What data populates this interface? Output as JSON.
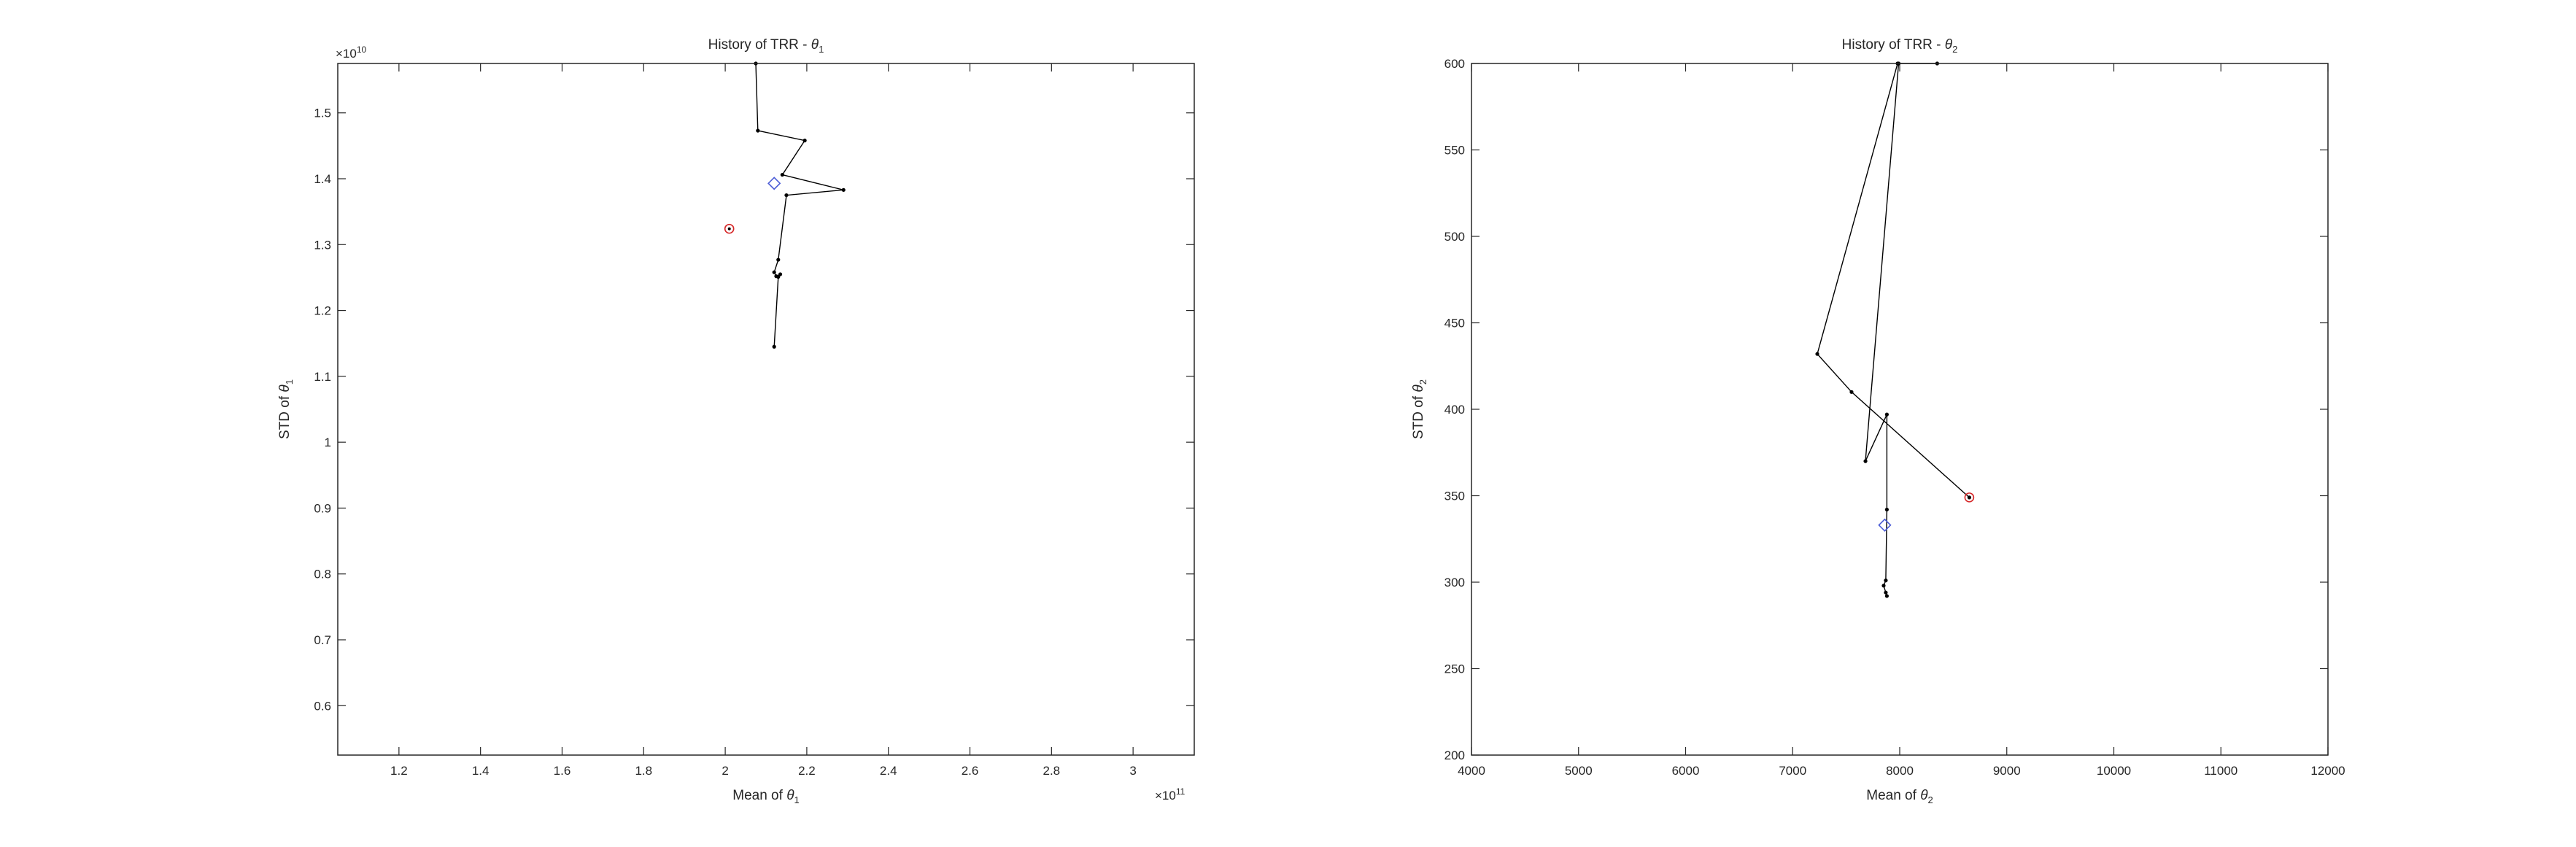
{
  "figure": {
    "background": "#ffffff"
  },
  "chart_data": [
    {
      "type": "line",
      "title": "History of TRR - ",
      "title_symbol": "θ",
      "title_sub": "1",
      "xlabel": "Mean of ",
      "xlabel_symbol": "θ",
      "xlabel_sub": "1",
      "ylabel": "STD of ",
      "ylabel_symbol": "θ",
      "ylabel_sub": "1",
      "x_exponent_label": "×10",
      "x_exponent": "11",
      "y_exponent_label": "×10",
      "y_exponent": "10",
      "xlim": [
        1.05,
        3.15
      ],
      "ylim": [
        0.525,
        1.575
      ],
      "x_ticks": [
        1.2,
        1.4,
        1.6,
        1.8,
        2.0,
        2.2,
        2.4,
        2.6,
        2.8,
        3.0
      ],
      "x_tick_labels": [
        "1.2",
        "1.4",
        "1.6",
        "1.8",
        "2",
        "2.2",
        "2.4",
        "2.6",
        "2.8",
        "3"
      ],
      "y_ticks": [
        0.6,
        0.7,
        0.8,
        0.9,
        1.0,
        1.1,
        1.2,
        1.3,
        1.4,
        1.5
      ],
      "y_tick_labels": [
        "0.6",
        "0.7",
        "0.8",
        "0.9",
        "1",
        "1.1",
        "1.2",
        "1.3",
        "1.4",
        "1.5"
      ],
      "grid": false,
      "colors": {
        "line": "#000000",
        "start_marker": "#d62728",
        "mean_marker": "#4a5bd6",
        "axes": "#262626"
      },
      "path_x": [
        2.075,
        2.08,
        2.195,
        2.14,
        2.29,
        2.15,
        2.13,
        2.12,
        2.125,
        2.135,
        2.13,
        2.12
      ],
      "path_y": [
        1.575,
        1.473,
        1.458,
        1.406,
        1.383,
        1.375,
        1.277,
        1.258,
        1.252,
        1.255,
        1.251,
        1.145
      ],
      "start_marker": {
        "x": 2.01,
        "y": 1.324
      },
      "mean_marker": {
        "x": 2.12,
        "y": 1.393
      }
    },
    {
      "type": "line",
      "title": "History of TRR - ",
      "title_symbol": "θ",
      "title_sub": "2",
      "xlabel": "Mean of ",
      "xlabel_symbol": "θ",
      "xlabel_sub": "2",
      "ylabel": "STD of ",
      "ylabel_symbol": "θ",
      "ylabel_sub": "2",
      "xlim": [
        4000,
        12000
      ],
      "ylim": [
        200,
        600
      ],
      "x_ticks": [
        4000,
        5000,
        6000,
        7000,
        8000,
        9000,
        10000,
        11000,
        12000
      ],
      "x_tick_labels": [
        "4000",
        "5000",
        "6000",
        "7000",
        "8000",
        "9000",
        "10000",
        "11000",
        "12000"
      ],
      "y_ticks": [
        200,
        250,
        300,
        350,
        400,
        450,
        500,
        550,
        600
      ],
      "y_tick_labels": [
        "200",
        "250",
        "300",
        "350",
        "400",
        "450",
        "500",
        "550",
        "600"
      ],
      "grid": false,
      "colors": {
        "line": "#000000",
        "start_marker": "#d62728",
        "mean_marker": "#4a5bd6",
        "axes": "#262626"
      },
      "path_x": [
        8650,
        7550,
        7230,
        7980,
        8350,
        7990,
        7680,
        7880,
        7880,
        7870,
        7850,
        7870,
        7880
      ],
      "path_y": [
        349,
        410,
        432,
        600,
        600,
        600,
        370,
        397,
        342,
        301,
        298,
        294,
        292
      ],
      "start_marker": {
        "x": 8650,
        "y": 349
      },
      "mean_marker": {
        "x": 7860,
        "y": 333
      }
    }
  ]
}
